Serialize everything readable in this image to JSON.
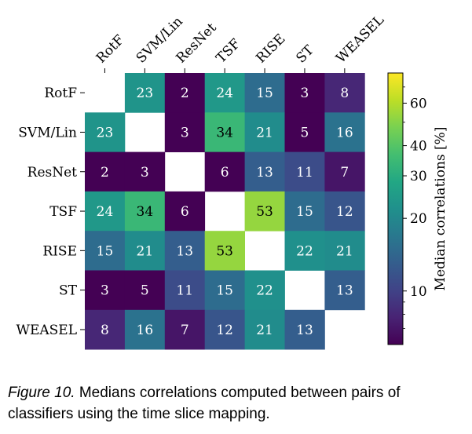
{
  "chart_data": {
    "type": "heatmap",
    "labels": [
      "RotF",
      "SVM/Lin",
      "ResNet",
      "TSF",
      "RISE",
      "ST",
      "WEASEL"
    ],
    "values": [
      [
        null,
        23,
        2,
        24,
        15,
        3,
        8
      ],
      [
        23,
        null,
        3,
        34,
        21,
        5,
        16
      ],
      [
        2,
        3,
        null,
        6,
        13,
        11,
        7
      ],
      [
        24,
        34,
        6,
        null,
        53,
        15,
        12
      ],
      [
        15,
        21,
        13,
        53,
        null,
        22,
        21
      ],
      [
        3,
        5,
        11,
        15,
        22,
        null,
        13
      ],
      [
        8,
        16,
        7,
        12,
        21,
        13,
        null
      ]
    ],
    "colorbar": {
      "label": "Median correlations [%]",
      "scale": "log",
      "range": [
        6,
        80
      ],
      "ticks": [
        "10",
        "20",
        "30",
        "40",
        "60"
      ],
      "colormap": "viridis"
    }
  },
  "caption": {
    "label": "Figure 10.",
    "text": " Medians correlations computed between pairs of classifiers using the time slice mapping."
  }
}
